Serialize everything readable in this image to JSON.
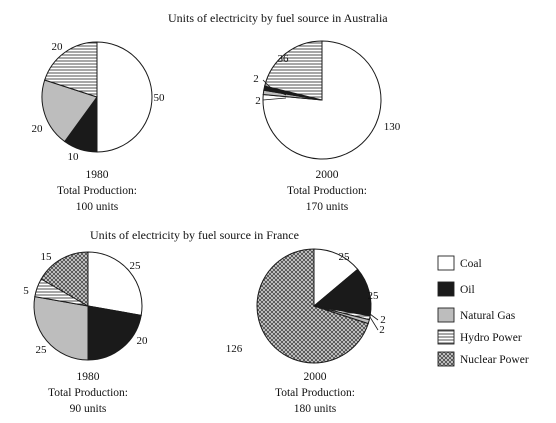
{
  "colors": {
    "Coal": "#ffffff",
    "Oil": "#1a1a1a",
    "Natural Gas": "#bdbdbd",
    "Hydro Power": "hatch-horizontal",
    "Nuclear Power": "crosshatch"
  },
  "chart_data": [
    {
      "type": "pie",
      "title": "Units of electricity by fuel source in Australia",
      "caption": [
        "1980",
        "Total Production:",
        "100 units"
      ],
      "slices": [
        {
          "category": "Coal",
          "value": 50,
          "label": "50"
        },
        {
          "category": "Oil",
          "value": 10,
          "label": "10"
        },
        {
          "category": "Natural Gas",
          "value": 20,
          "label": "20"
        },
        {
          "category": "Hydro Power",
          "value": 20,
          "label": "20"
        }
      ]
    },
    {
      "type": "pie",
      "title": "",
      "caption": [
        "2000",
        "Total Production:",
        "170 units"
      ],
      "slices": [
        {
          "category": "Coal",
          "value": 130,
          "label": "130"
        },
        {
          "category": "Oil",
          "value": 2,
          "label": "2"
        },
        {
          "category": "Natural Gas",
          "value": 2,
          "label": "2"
        },
        {
          "category": "Hydro Power",
          "value": 36,
          "label": "36"
        }
      ]
    },
    {
      "type": "pie",
      "title": "Units of electricity by fuel source in France",
      "caption": [
        "1980",
        "Total Production:",
        "90 units"
      ],
      "slices": [
        {
          "category": "Coal",
          "value": 25,
          "label": "25"
        },
        {
          "category": "Oil",
          "value": 20,
          "label": "20"
        },
        {
          "category": "Natural Gas",
          "value": 25,
          "label": "25"
        },
        {
          "category": "Hydro Power",
          "value": 5,
          "label": "5"
        },
        {
          "category": "Nuclear Power",
          "value": 15,
          "label": "15"
        }
      ]
    },
    {
      "type": "pie",
      "title": "",
      "caption": [
        "2000",
        "Total Production:",
        "180 units"
      ],
      "slices": [
        {
          "category": "Coal",
          "value": 25,
          "label": "25"
        },
        {
          "category": "Oil",
          "value": 25,
          "label": "25"
        },
        {
          "category": "Natural Gas",
          "value": 2,
          "label": "2"
        },
        {
          "category": "Hydro Power",
          "value": 2,
          "label": "2"
        },
        {
          "category": "Nuclear Power",
          "value": 126,
          "label": "126"
        }
      ]
    }
  ],
  "legend": [
    "Coal",
    "Oil",
    "Natural Gas",
    "Hydro Power",
    "Nuclear Power"
  ]
}
